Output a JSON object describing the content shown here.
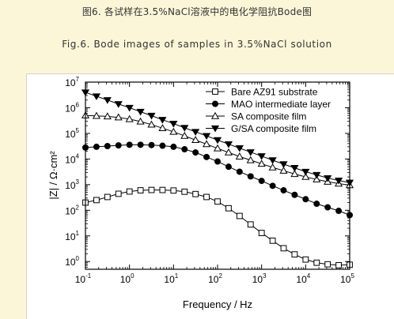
{
  "caption": {
    "cn": "图6. 各试样在3.5%NaCl溶液中的电化学阻抗Bode图",
    "en": "Fig.6. Bode images of samples in 3.5%NaCl solution"
  },
  "chart_data": {
    "type": "scatter",
    "xscale": "log",
    "yscale": "log",
    "xlabel": "Frequency / Hz",
    "ylabel": "|Z| / Ω·cm²",
    "xlim": [
      0.1,
      100000
    ],
    "ylim": [
      0.5,
      10000000
    ],
    "x_ticks": [
      {
        "base": "10",
        "exp": "-1"
      },
      {
        "base": "10",
        "exp": "0"
      },
      {
        "base": "10",
        "exp": "1"
      },
      {
        "base": "10",
        "exp": "2"
      },
      {
        "base": "10",
        "exp": "3"
      },
      {
        "base": "10",
        "exp": "4"
      },
      {
        "base": "10",
        "exp": "5"
      }
    ],
    "y_ticks": [
      {
        "base": "10",
        "exp": "0"
      },
      {
        "base": "10",
        "exp": "1"
      },
      {
        "base": "10",
        "exp": "2"
      },
      {
        "base": "10",
        "exp": "3"
      },
      {
        "base": "10",
        "exp": "4"
      },
      {
        "base": "10",
        "exp": "5"
      },
      {
        "base": "10",
        "exp": "6"
      },
      {
        "base": "10",
        "exp": "7"
      }
    ],
    "legend_position": "top-right",
    "series": [
      {
        "name": "Bare AZ91 substrate",
        "marker": "open-square",
        "x": [
          0.1,
          0.178,
          0.316,
          0.562,
          1,
          1.78,
          3.16,
          5.62,
          10,
          17.8,
          31.6,
          56.2,
          100,
          178,
          316,
          562,
          1000,
          1780,
          3160,
          5620,
          10000,
          17800,
          31600,
          56200,
          100000
        ],
        "y": [
          200,
          250,
          330,
          440,
          540,
          600,
          620,
          620,
          590,
          530,
          430,
          330,
          220,
          120,
          60,
          28,
          13,
          6.5,
          3.3,
          1.9,
          1.2,
          0.9,
          0.78,
          0.72,
          0.75
        ]
      },
      {
        "name": "MAO intermediate layer",
        "marker": "filled-circle",
        "x": [
          0.1,
          0.178,
          0.316,
          0.562,
          1,
          1.78,
          3.16,
          5.62,
          10,
          17.8,
          31.6,
          56.2,
          100,
          178,
          316,
          562,
          1000,
          1780,
          3160,
          5620,
          10000,
          17800,
          31600,
          56200,
          100000
        ],
        "y": [
          28000,
          30000,
          32000,
          34000,
          36000,
          36000,
          35000,
          33000,
          30000,
          24000,
          18000,
          12000,
          8000,
          5000,
          3200,
          2100,
          1400,
          900,
          600,
          400,
          270,
          180,
          130,
          95,
          65
        ]
      },
      {
        "name": "SA composite film",
        "marker": "open-triangle",
        "x": [
          0.1,
          0.178,
          0.316,
          0.562,
          1,
          1.78,
          3.16,
          5.62,
          10,
          17.8,
          31.6,
          56.2,
          100,
          178,
          316,
          562,
          1000,
          1780,
          3160,
          5620,
          10000,
          17800,
          31600,
          56200,
          100000
        ],
        "y": [
          500000,
          480000,
          460000,
          420000,
          360000,
          290000,
          220000,
          160000,
          115000,
          80000,
          55000,
          38000,
          26000,
          18000,
          12500,
          9000,
          6500,
          4700,
          3500,
          2600,
          2000,
          1600,
          1300,
          1100,
          950
        ]
      },
      {
        "name": "G/SA composite film",
        "marker": "filled-triangle-down",
        "x": [
          0.1,
          0.178,
          0.316,
          0.562,
          1,
          1.78,
          3.16,
          5.62,
          10,
          17.8,
          31.6,
          56.2,
          100,
          178,
          316,
          562,
          1000,
          1780,
          3160,
          5620,
          10000,
          17800,
          31600,
          56200,
          100000
        ],
        "y": [
          4000000,
          2800000,
          2000000,
          1400000,
          1000000,
          700000,
          490000,
          340000,
          240000,
          165000,
          115000,
          80000,
          55000,
          38000,
          26500,
          18500,
          13000,
          9000,
          6300,
          4500,
          3200,
          2400,
          1800,
          1450,
          1200
        ]
      }
    ]
  }
}
